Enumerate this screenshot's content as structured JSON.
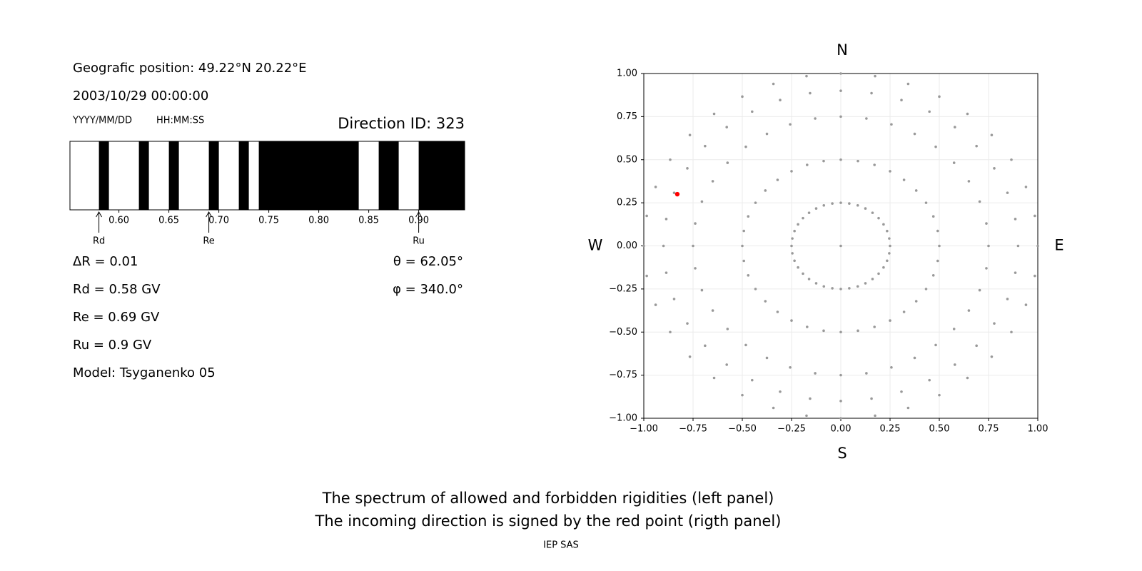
{
  "chart_data": [
    {
      "type": "spectrum",
      "position": "Geografic position: 49.22°N 20.22°E",
      "datetime": "2003/10/29 00:00:00",
      "format_labels": [
        "YYYY/MM/DD",
        "HH:MM:SS"
      ],
      "title": "Direction ID: 323",
      "xlim": [
        0.551,
        0.946
      ],
      "xticks": [
        {
          "value": 0.6,
          "label": "0.60"
        },
        {
          "value": 0.65,
          "label": "0.65"
        },
        {
          "value": 0.7,
          "label": "0.70"
        },
        {
          "value": 0.75,
          "label": "0.75"
        },
        {
          "value": 0.8,
          "label": "0.80"
        },
        {
          "value": 0.85,
          "label": "0.85"
        },
        {
          "value": 0.9,
          "label": "0.90"
        }
      ],
      "color": "#000000",
      "bands": [
        [
          0.58,
          0.59
        ],
        [
          0.62,
          0.63
        ],
        [
          0.65,
          0.66
        ],
        [
          0.69,
          0.7
        ],
        [
          0.72,
          0.73
        ],
        [
          0.74,
          0.84
        ],
        [
          0.86,
          0.88
        ],
        [
          0.9,
          0.946
        ]
      ],
      "markers": [
        {
          "label": "Rd",
          "value": 0.58
        },
        {
          "label": "Re",
          "value": 0.69
        },
        {
          "label": "Ru",
          "value": 0.9
        }
      ],
      "info_left": [
        "ΔR = 0.01",
        "Rd = 0.58 GV",
        "Re = 0.69 GV",
        "Ru = 0.9 GV",
        "Model: Tsyganenko 05"
      ],
      "info_right": [
        "θ = 62.05°",
        "φ = 340.0°"
      ]
    },
    {
      "type": "scatter",
      "compass": [
        "N",
        "E",
        "S",
        "W"
      ],
      "xlim": [
        -1,
        1
      ],
      "ylim": [
        -1,
        1
      ],
      "xticks": [
        {
          "value": -1,
          "label": "−1.00"
        },
        {
          "value": -0.75,
          "label": "−0.75"
        },
        {
          "value": -0.5,
          "label": "−0.50"
        },
        {
          "value": -0.25,
          "label": "−0.25"
        },
        {
          "value": 0,
          "label": "0.00"
        },
        {
          "value": 0.25,
          "label": "0.25"
        },
        {
          "value": 0.5,
          "label": "0.50"
        },
        {
          "value": 0.75,
          "label": "0.75"
        },
        {
          "value": 1,
          "label": "1.00"
        }
      ],
      "yticks": [
        {
          "value": -1,
          "label": "−1.00"
        },
        {
          "value": -0.75,
          "label": "−0.75"
        },
        {
          "value": -0.5,
          "label": "−0.50"
        },
        {
          "value": -0.25,
          "label": "−0.25"
        },
        {
          "value": 0,
          "label": "0.00"
        },
        {
          "value": 0.25,
          "label": "0.25"
        },
        {
          "value": 0.5,
          "label": "0.50"
        },
        {
          "value": 0.75,
          "label": "0.75"
        },
        {
          "value": 1,
          "label": "1.00"
        }
      ],
      "grid": true,
      "series": [
        {
          "color": "#999999",
          "x": [
            0,
            0,
            0.043,
            0.086,
            0.125,
            0.161,
            0.192,
            0.217,
            0.235,
            0.246,
            0.25,
            0.246,
            0.235,
            0.217,
            0.192,
            0.161,
            0.125,
            0.086,
            0.043,
            0,
            -0.043,
            -0.086,
            -0.125,
            -0.161,
            -0.192,
            -0.217,
            -0.235,
            -0.246,
            -0.25,
            -0.246,
            -0.235,
            -0.217,
            -0.192,
            -0.161,
            -0.125,
            -0.086,
            -0.043,
            0,
            0.087,
            0.171,
            0.25,
            0.321,
            0.383,
            0.433,
            0.47,
            0.492,
            0.5,
            0.492,
            0.47,
            0.433,
            0.383,
            0.321,
            0.25,
            0.171,
            0.087,
            0,
            -0.087,
            -0.171,
            -0.25,
            -0.321,
            -0.383,
            -0.433,
            -0.47,
            -0.492,
            -0.5,
            -0.492,
            -0.47,
            -0.433,
            -0.383,
            -0.321,
            -0.25,
            -0.171,
            -0.087,
            0,
            0.13,
            0.257,
            0.375,
            0.482,
            0.575,
            0.65,
            0.705,
            0.739,
            0.75,
            0.739,
            0.705,
            0.65,
            0.575,
            0.482,
            0.375,
            0.257,
            0.13,
            0,
            -0.13,
            -0.257,
            -0.375,
            -0.482,
            -0.575,
            -0.65,
            -0.705,
            -0.739,
            -0.75,
            -0.739,
            -0.705,
            -0.65,
            -0.575,
            -0.482,
            -0.375,
            -0.257,
            -0.13,
            0,
            0.156,
            0.308,
            0.45,
            0.579,
            0.689,
            0.779,
            0.846,
            0.886,
            0.9,
            0.886,
            0.846,
            0.779,
            0.689,
            0.579,
            0.45,
            0.308,
            0.156,
            0,
            -0.156,
            -0.308,
            -0.45,
            -0.579,
            -0.689,
            -0.779,
            -0.846,
            -0.886,
            -0.9,
            -0.886,
            -0.846,
            -0.779,
            -0.689,
            -0.579,
            -0.45,
            -0.308,
            -0.156,
            0,
            0.174,
            0.342,
            0.5,
            0.643,
            0.766,
            0.866,
            0.94,
            0.985,
            1,
            0.985,
            0.94,
            0.866,
            0.766,
            0.643,
            0.5,
            0.342,
            0.174,
            0,
            -0.174,
            -0.342,
            -0.5,
            -0.643,
            -0.766,
            -0.866,
            -0.94,
            -0.985,
            -1,
            -0.985,
            -0.94,
            -0.866,
            -0.766,
            -0.643,
            -0.5,
            -0.342,
            -0.174
          ],
          "y": [
            0,
            0.25,
            0.246,
            0.235,
            0.217,
            0.192,
            0.161,
            0.125,
            0.086,
            0.043,
            0,
            -0.043,
            -0.086,
            -0.125,
            -0.161,
            -0.192,
            -0.217,
            -0.235,
            -0.246,
            -0.25,
            -0.246,
            -0.235,
            -0.217,
            -0.192,
            -0.161,
            -0.125,
            -0.086,
            -0.043,
            0,
            0.043,
            0.086,
            0.125,
            0.161,
            0.192,
            0.217,
            0.235,
            0.246,
            0.5,
            0.492,
            0.47,
            0.433,
            0.383,
            0.321,
            0.25,
            0.171,
            0.087,
            0,
            -0.087,
            -0.171,
            -0.25,
            -0.321,
            -0.383,
            -0.433,
            -0.47,
            -0.492,
            -0.5,
            -0.492,
            -0.47,
            -0.433,
            -0.383,
            -0.321,
            -0.25,
            -0.171,
            -0.087,
            0,
            0.087,
            0.171,
            0.25,
            0.321,
            0.383,
            0.433,
            0.47,
            0.492,
            0.75,
            0.739,
            0.705,
            0.65,
            0.575,
            0.482,
            0.375,
            0.257,
            0.13,
            0,
            -0.13,
            -0.257,
            -0.375,
            -0.482,
            -0.575,
            -0.65,
            -0.705,
            -0.739,
            -0.75,
            -0.739,
            -0.705,
            -0.65,
            -0.575,
            -0.482,
            -0.375,
            -0.257,
            -0.13,
            0,
            0.13,
            0.257,
            0.375,
            0.482,
            0.575,
            0.65,
            0.705,
            0.739,
            0.9,
            0.886,
            0.846,
            0.779,
            0.689,
            0.579,
            0.45,
            0.308,
            0.156,
            0,
            -0.156,
            -0.308,
            -0.45,
            -0.579,
            -0.689,
            -0.779,
            -0.846,
            -0.886,
            -0.9,
            -0.886,
            -0.846,
            -0.779,
            -0.689,
            -0.579,
            -0.45,
            -0.308,
            -0.156,
            0,
            0.156,
            0.308,
            0.45,
            0.579,
            0.689,
            0.779,
            0.846,
            0.886,
            1,
            0.985,
            0.94,
            0.866,
            0.766,
            0.643,
            0.5,
            0.342,
            0.174,
            0,
            -0.174,
            -0.342,
            -0.5,
            -0.643,
            -0.766,
            -0.866,
            -0.94,
            -0.985,
            -1,
            -0.985,
            -0.94,
            -0.866,
            -0.766,
            -0.643,
            -0.5,
            -0.342,
            -0.174,
            0,
            0.174,
            0.342,
            0.5,
            0.643,
            0.766,
            0.866,
            0.94,
            0.985
          ]
        },
        {
          "color": "#ff0000",
          "x": [
            -0.83
          ],
          "y": [
            0.3
          ]
        }
      ]
    }
  ],
  "caption": [
    "The spectrum of allowed and forbidden rigidities (left panel)",
    "The incoming direction is signed by the red point (rigth panel)"
  ],
  "credit": "IEP SAS"
}
